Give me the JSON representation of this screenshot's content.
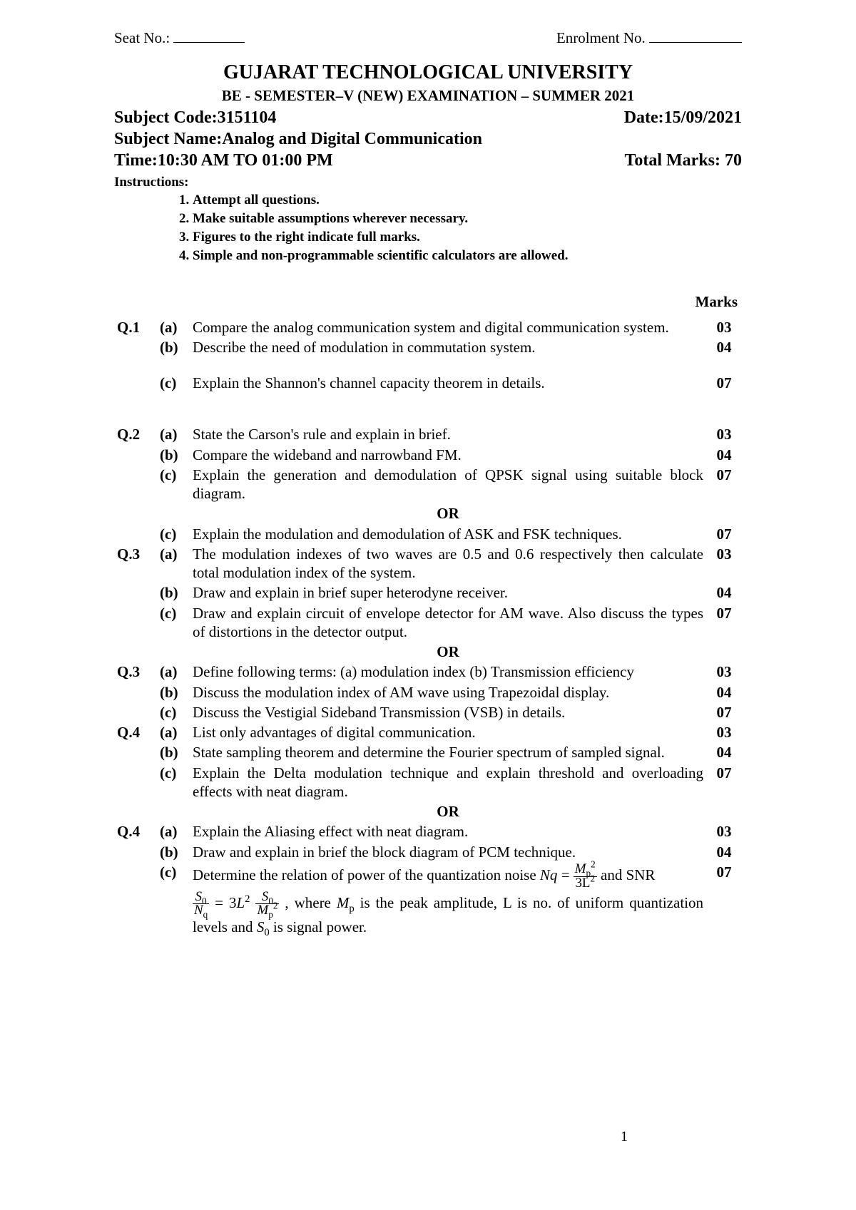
{
  "header": {
    "seat_label": "Seat No.:",
    "enrol_label": "Enrolment No.",
    "university": "GUJARAT TECHNOLOGICAL UNIVERSITY",
    "exam": "BE - SEMESTER–V (NEW) EXAMINATION – SUMMER 2021",
    "subject_code_label": "Subject Code:3151104",
    "date_label": "Date:15/09/2021",
    "subject_name": "Subject Name:Analog and Digital Communication",
    "time_label": "Time:10:30 AM TO 01:00 PM",
    "total_marks": "Total Marks: 70",
    "instructions_hd": "Instructions:",
    "instructions": [
      "Attempt all questions.",
      "Make suitable assumptions wherever necessary.",
      "Figures to the right indicate full marks.",
      "Simple and non-programmable scientific calculators are allowed."
    ],
    "marks_hd": "Marks"
  },
  "rows": [
    {
      "q": "Q.1",
      "p": "(a)",
      "t": "Compare the analog communication system and digital communication system.",
      "m": "03"
    },
    {
      "q": "",
      "p": "(b)",
      "t": "Describe the need of modulation in commutation system.",
      "m": "04"
    },
    {
      "type": "sp"
    },
    {
      "q": "",
      "p": "(c)",
      "t": "Explain the Shannon's channel capacity theorem in details.",
      "m": "07"
    },
    {
      "type": "sp"
    },
    {
      "type": "sp"
    },
    {
      "q": "Q.2",
      "p": "(a)",
      "t": "State the Carson's rule and explain in brief.",
      "m": "03"
    },
    {
      "q": "",
      "p": "(b)",
      "t": "Compare the wideband and narrowband FM.",
      "m": "04"
    },
    {
      "q": "",
      "p": "(c)",
      "t": "Explain the generation and demodulation of QPSK signal using suitable block diagram.",
      "m": "07"
    },
    {
      "type": "or"
    },
    {
      "q": "",
      "p": "(c)",
      "t": "Explain the modulation and demodulation of ASK and FSK techniques.",
      "m": "07"
    },
    {
      "q": "Q.3",
      "p": "(a)",
      "t": "The modulation indexes of two waves are 0.5 and 0.6 respectively then calculate total modulation index of the system.",
      "m": "03"
    },
    {
      "q": "",
      "p": "(b)",
      "t": "Draw and explain in brief super heterodyne receiver.",
      "m": "04"
    },
    {
      "q": "",
      "p": "(c)",
      "t": "Draw and explain circuit of envelope detector for AM wave. Also discuss the types of distortions in the detector output.",
      "m": "07"
    },
    {
      "type": "or"
    },
    {
      "q": "Q.3",
      "p": "(a)",
      "t": "Define following terms: (a) modulation index (b) Transmission efficiency",
      "m": "03"
    },
    {
      "q": "",
      "p": "(b)",
      "t": "Discuss the modulation index of AM wave using Trapezoidal display.",
      "m": "04"
    },
    {
      "q": "",
      "p": "(c)",
      "t": "Discuss the  Vestigial Sideband Transmission\n(VSB) in details.",
      "m": "07"
    },
    {
      "q": "Q.4",
      "p": "(a)",
      "t": "List only advantages of digital communication.",
      "m": "03"
    },
    {
      "q": "",
      "p": "(b)",
      "t": "State sampling theorem and determine the Fourier spectrum of sampled signal.",
      "m": "04"
    },
    {
      "q": "",
      "p": "(c)",
      "t": "Explain the Delta modulation technique and explain threshold and overloading effects with neat diagram.",
      "m": "07"
    },
    {
      "type": "or"
    },
    {
      "q": "Q.4",
      "p": "(a)",
      "t": "Explain the Aliasing effect with neat diagram.",
      "m": "03"
    },
    {
      "q": "",
      "p": "(b)",
      "t": "Draw and explain in brief the block diagram of PCM technique.",
      "m": "04"
    }
  ],
  "q4c_or": {
    "q": "",
    "p": "(c)",
    "m": "07",
    "pre": "Determine the relation of power of the quantization noise ",
    "nq": "Nq",
    "eq_sign": " = ",
    "frac1_num_a": "M",
    "frac1_num_sub": "p",
    "frac1_num_sup": "2",
    "frac1_den_a": "3L",
    "frac1_den_sup": "2",
    "post1": " and SNR",
    "snr_num_a": "S",
    "snr_num_sub": "0",
    "snr_den_a": "N",
    "snr_den_sub": "q",
    "eq2": " = 3",
    "L": "L",
    "L_sup": "2",
    "frac2_num_a": "S",
    "frac2_num_sub": "0",
    "frac2_den_a": "M",
    "frac2_den_sub": "p",
    "frac2_den_sup": "2",
    "post2": " ,  where ",
    "Mp_a": "M",
    "Mp_sub": "p",
    "post3": " is the peak amplitude, L is no. of  uniform quantization levels and  ",
    "S0_a": "S",
    "S0_sub": "0",
    "post4": " is signal power."
  },
  "or_label": "OR",
  "page_no": "1"
}
